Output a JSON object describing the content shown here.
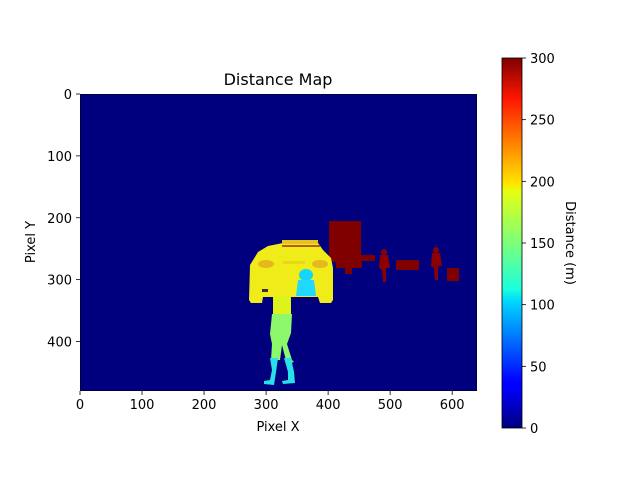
{
  "chart_data": {
    "type": "heatmap",
    "title": "Distance Map",
    "xlabel": "Pixel X",
    "ylabel": "Pixel Y",
    "xlim": [
      0,
      640
    ],
    "ylim": [
      480,
      0
    ],
    "x_ticks": [
      0,
      100,
      200,
      300,
      400,
      500,
      600
    ],
    "y_ticks": [
      0,
      100,
      200,
      300,
      400
    ],
    "colorbar": {
      "label": "Distance (m)",
      "range": [
        0,
        300
      ],
      "ticks": [
        0,
        50,
        100,
        150,
        200,
        250,
        300
      ],
      "colormap": "jet"
    },
    "background_value": 0,
    "regions": [
      {
        "name": "car",
        "approx_value": 195
      },
      {
        "name": "dark-block",
        "approx_value": 300
      },
      {
        "name": "person-left",
        "approx_value": 300
      },
      {
        "name": "person-right",
        "approx_value": 300
      },
      {
        "name": "small-block",
        "approx_value": 300
      },
      {
        "name": "pedestrian-foreground",
        "approx_value": 140
      }
    ]
  }
}
